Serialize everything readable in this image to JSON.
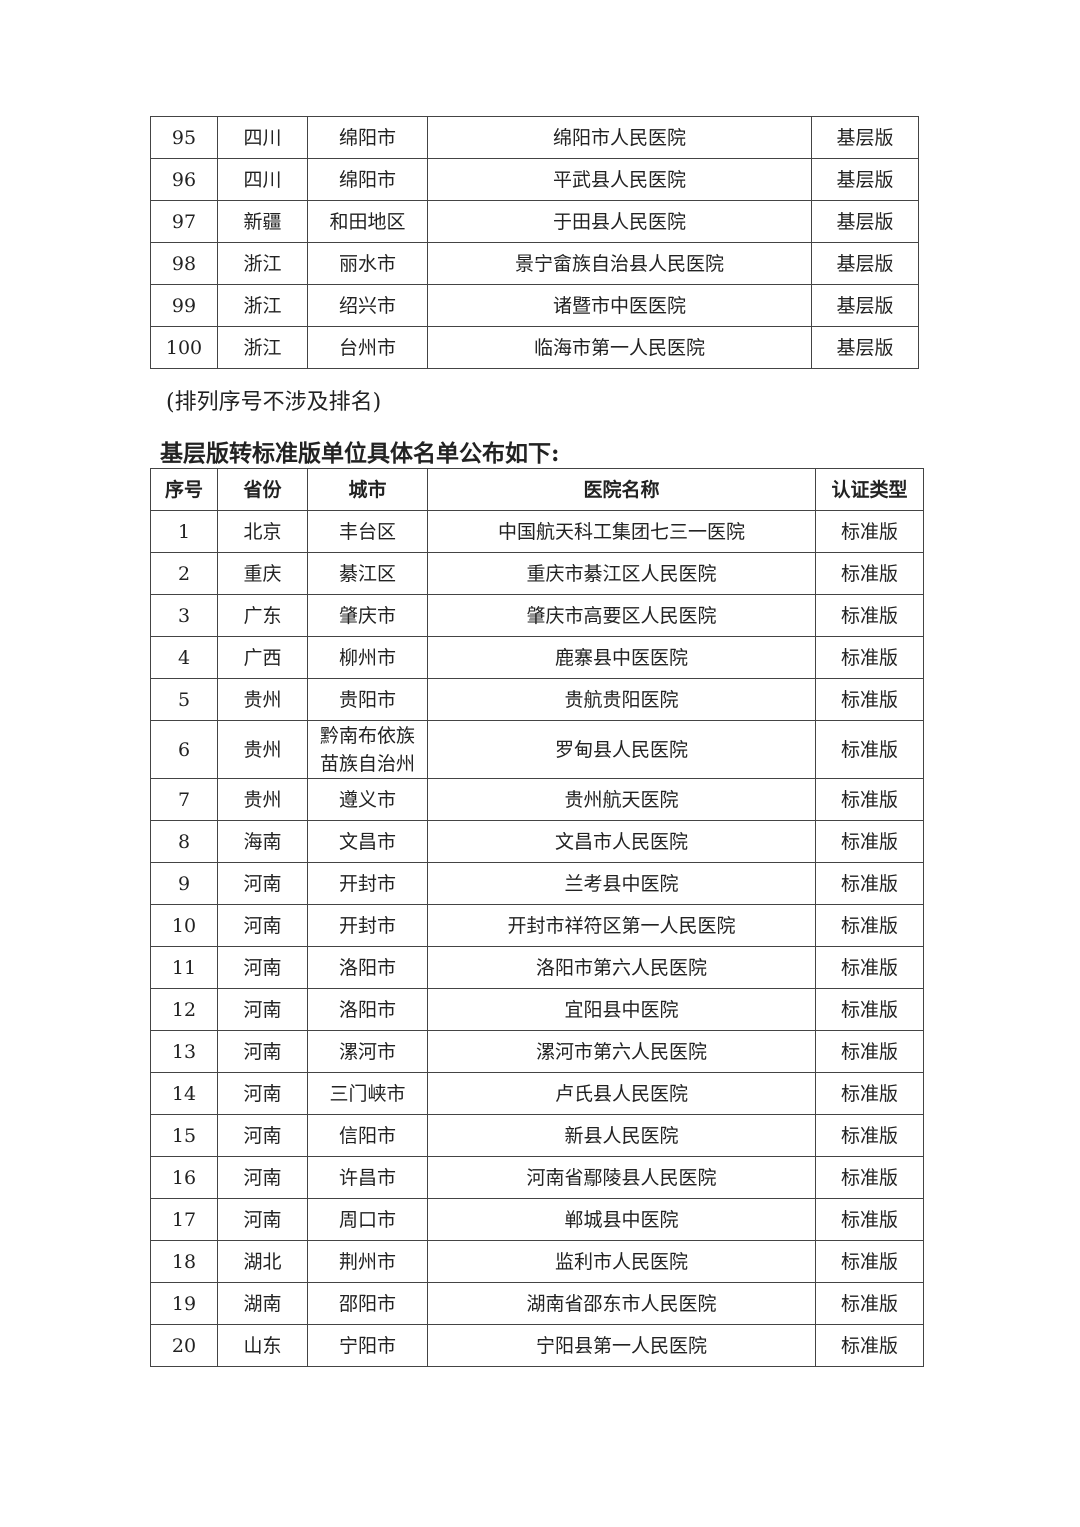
{
  "table_continued": {
    "rows": [
      [
        "95",
        "四川",
        "绵阳市",
        "绵阳市人民医院",
        "基层版"
      ],
      [
        "96",
        "四川",
        "绵阳市",
        "平武县人民医院",
        "基层版"
      ],
      [
        "97",
        "新疆",
        "和田地区",
        "于田县人民医院",
        "基层版"
      ],
      [
        "98",
        "浙江",
        "丽水市",
        "景宁畲族自治县人民医院",
        "基层版"
      ],
      [
        "99",
        "浙江",
        "绍兴市",
        "诸暨市中医医院",
        "基层版"
      ],
      [
        "100",
        "浙江",
        "台州市",
        "临海市第一人民医院",
        "基层版"
      ]
    ]
  },
  "note": "(排列序号不涉及排名)",
  "heading": "基层版转标准版单位具体名单公布如下:",
  "table_upgrade": {
    "headers": [
      "序号",
      "省份",
      "城市",
      "医院名称",
      "认证类型"
    ],
    "rows": [
      [
        "1",
        "北京",
        "丰台区",
        "中国航天科工集团七三一医院",
        "标准版"
      ],
      [
        "2",
        "重庆",
        "綦江区",
        "重庆市綦江区人民医院",
        "标准版"
      ],
      [
        "3",
        "广东",
        "肇庆市",
        "肇庆市高要区人民医院",
        "标准版"
      ],
      [
        "4",
        "广西",
        "柳州市",
        "鹿寨县中医医院",
        "标准版"
      ],
      [
        "5",
        "贵州",
        "贵阳市",
        "贵航贵阳医院",
        "标准版"
      ],
      [
        "6",
        "贵州",
        "黔南布依族苗族自治州",
        "罗甸县人民医院",
        "标准版"
      ],
      [
        "7",
        "贵州",
        "遵义市",
        "贵州航天医院",
        "标准版"
      ],
      [
        "8",
        "海南",
        "文昌市",
        "文昌市人民医院",
        "标准版"
      ],
      [
        "9",
        "河南",
        "开封市",
        "兰考县中医院",
        "标准版"
      ],
      [
        "10",
        "河南",
        "开封市",
        "开封市祥符区第一人民医院",
        "标准版"
      ],
      [
        "11",
        "河南",
        "洛阳市",
        "洛阳市第六人民医院",
        "标准版"
      ],
      [
        "12",
        "河南",
        "洛阳市",
        "宜阳县中医院",
        "标准版"
      ],
      [
        "13",
        "河南",
        "漯河市",
        "漯河市第六人民医院",
        "标准版"
      ],
      [
        "14",
        "河南",
        "三门峡市",
        "卢氏县人民医院",
        "标准版"
      ],
      [
        "15",
        "河南",
        "信阳市",
        "新县人民医院",
        "标准版"
      ],
      [
        "16",
        "河南",
        "许昌市",
        "河南省鄢陵县人民医院",
        "标准版"
      ],
      [
        "17",
        "河南",
        "周口市",
        "郸城县中医院",
        "标准版"
      ],
      [
        "18",
        "湖北",
        "荆州市",
        "监利市人民医院",
        "标准版"
      ],
      [
        "19",
        "湖南",
        "邵阳市",
        "湖南省邵东市人民医院",
        "标准版"
      ],
      [
        "20",
        "山东",
        "宁阳市",
        "宁阳县第一人民医院",
        "标准版"
      ]
    ]
  }
}
